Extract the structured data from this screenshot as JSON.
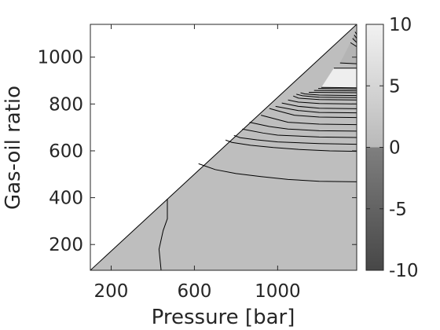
{
  "chart_data": {
    "type": "contour",
    "xlabel": "Pressure [bar]",
    "ylabel": "Gas-oil ratio",
    "xlim": [
      100,
      1380
    ],
    "ylim": [
      90,
      1140
    ],
    "x_ticks": [
      200,
      600,
      1000
    ],
    "y_ticks": [
      200,
      400,
      600,
      800,
      1000
    ],
    "boundary_line": {
      "p0": [
        100,
        90
      ],
      "p1": [
        1380,
        1140
      ]
    },
    "contours": [
      {
        "name": "near-zero-left",
        "points": [
          [
            440,
            90
          ],
          [
            430,
            180
          ],
          [
            450,
            260
          ],
          [
            470,
            310
          ],
          [
            470,
            395
          ]
        ]
      },
      {
        "name": "level-1",
        "points": [
          [
            1380,
            468
          ],
          [
            1200,
            470
          ],
          [
            1050,
            478
          ],
          [
            920,
            490
          ],
          [
            800,
            503
          ],
          [
            700,
            520
          ],
          [
            620,
            545
          ]
        ]
      },
      {
        "name": "level-2",
        "points": [
          [
            1380,
            598
          ],
          [
            1250,
            600
          ],
          [
            1100,
            606
          ],
          [
            980,
            614
          ],
          [
            870,
            624
          ],
          [
            780,
            636
          ],
          [
            750,
            646
          ]
        ]
      },
      {
        "name": "level-3",
        "points": [
          [
            1380,
            628
          ],
          [
            1200,
            631
          ],
          [
            1000,
            638
          ],
          [
            900,
            647
          ],
          [
            820,
            656
          ],
          [
            790,
            666
          ]
        ]
      },
      {
        "name": "level-4",
        "points": [
          [
            1380,
            657
          ],
          [
            1200,
            659
          ],
          [
            1000,
            667
          ],
          [
            930,
            676
          ],
          [
            830,
            693
          ]
        ]
      },
      {
        "name": "level-5",
        "points": [
          [
            1380,
            684
          ],
          [
            1200,
            686
          ],
          [
            1050,
            693
          ],
          [
            960,
            704
          ],
          [
            865,
            722
          ]
        ]
      },
      {
        "name": "level-6",
        "points": [
          [
            1380,
            712
          ],
          [
            1200,
            714
          ],
          [
            1050,
            722
          ],
          [
            920,
            752
          ]
        ]
      },
      {
        "name": "level-7",
        "points": [
          [
            1380,
            742
          ],
          [
            1200,
            744
          ],
          [
            1080,
            752
          ],
          [
            1000,
            771
          ],
          [
            960,
            781
          ]
        ]
      },
      {
        "name": "level-8",
        "points": [
          [
            1380,
            762
          ],
          [
            1200,
            764
          ],
          [
            1100,
            772
          ],
          [
            990,
            790
          ]
        ]
      },
      {
        "name": "level-9",
        "points": [
          [
            1380,
            780
          ],
          [
            1200,
            782
          ],
          [
            1100,
            790
          ],
          [
            1020,
            804
          ]
        ]
      },
      {
        "name": "level-10",
        "points": [
          [
            1380,
            800
          ],
          [
            1200,
            802
          ],
          [
            1100,
            808
          ],
          [
            1050,
            817
          ]
        ]
      },
      {
        "name": "level-11",
        "points": [
          [
            1380,
            817
          ],
          [
            1200,
            819
          ],
          [
            1100,
            825
          ],
          [
            1075,
            834
          ]
        ]
      },
      {
        "name": "level-12",
        "points": [
          [
            1380,
            827
          ],
          [
            1200,
            829
          ],
          [
            1120,
            835
          ],
          [
            1090,
            842
          ]
        ]
      },
      {
        "name": "level-13",
        "points": [
          [
            1380,
            836
          ],
          [
            1200,
            838
          ],
          [
            1130,
            843
          ],
          [
            1110,
            848
          ]
        ]
      },
      {
        "name": "level-14",
        "points": [
          [
            1380,
            848
          ],
          [
            1150,
            850
          ]
        ]
      },
      {
        "name": "level-15",
        "points": [
          [
            1380,
            856
          ],
          [
            1175,
            858
          ]
        ]
      },
      {
        "name": "level-16",
        "points": [
          [
            1380,
            864
          ],
          [
            1195,
            866
          ]
        ]
      },
      {
        "name": "level-17",
        "points": [
          [
            1380,
            869
          ],
          [
            1210,
            871
          ]
        ]
      },
      {
        "name": "level-18",
        "points": [
          [
            1380,
            953
          ],
          [
            1270,
            953
          ]
        ]
      },
      {
        "name": "level-19",
        "points": [
          [
            1380,
            972
          ],
          [
            1300,
            975
          ]
        ]
      },
      {
        "name": "level-20",
        "points": [
          [
            1380,
            1045
          ],
          [
            1350,
            1062
          ]
        ]
      },
      {
        "name": "level-21",
        "points": [
          [
            1380,
            1062
          ],
          [
            1360,
            1080
          ]
        ]
      },
      {
        "name": "level-22",
        "points": [
          [
            1380,
            1080
          ],
          [
            1368,
            1095
          ]
        ]
      },
      {
        "name": "level-23",
        "points": [
          [
            1380,
            1097
          ],
          [
            1372,
            1108
          ]
        ]
      }
    ],
    "bands": [
      {
        "name": "band-light",
        "value": 9,
        "color": "#eeeeee",
        "points": [
          [
            1380,
            869
          ],
          [
            1380,
            953
          ],
          [
            1270,
            953
          ],
          [
            1210,
            871
          ]
        ]
      },
      {
        "name": "band-mid-1",
        "value": 4,
        "color": "#b4b4b4",
        "points": [
          [
            1380,
            972
          ],
          [
            1380,
            1045
          ],
          [
            1350,
            1062
          ],
          [
            1300,
            975
          ]
        ]
      },
      {
        "name": "band-mid-2",
        "value": 3,
        "color": "#a9a9a9",
        "points": [
          [
            1380,
            1062
          ],
          [
            1380,
            1080
          ],
          [
            1368,
            1095
          ],
          [
            1360,
            1080
          ]
        ]
      },
      {
        "name": "band-mid-3",
        "value": 5,
        "color": "#c2c2c2",
        "points": [
          [
            1380,
            1080
          ],
          [
            1380,
            1097
          ],
          [
            1372,
            1108
          ],
          [
            1368,
            1095
          ]
        ]
      }
    ],
    "colorbar": {
      "range": [
        -10,
        10
      ],
      "ticks": [
        10,
        5,
        0,
        -5,
        -10
      ],
      "tick_labels": [
        "10",
        "5",
        "0",
        "-5",
        "-10"
      ],
      "stops": [
        {
          "value": 10,
          "color": "#f2f2f2"
        },
        {
          "value": 0,
          "color": "#b9b9b9"
        },
        {
          "value": -0.01,
          "color": "#7f7f7f"
        },
        {
          "value": -10,
          "color": "#474747"
        }
      ]
    },
    "fill_color": "#bebebe",
    "grid": false
  }
}
